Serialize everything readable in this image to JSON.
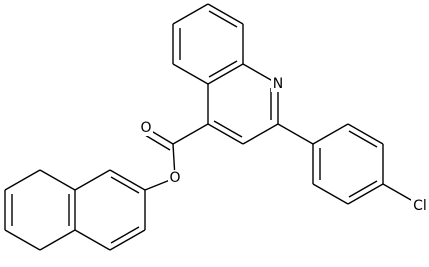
{
  "atoms": [
    {
      "label": "N"
    },
    {
      "label": "O"
    },
    {
      "label": "O"
    },
    {
      "label": "Cl"
    }
  ]
}
